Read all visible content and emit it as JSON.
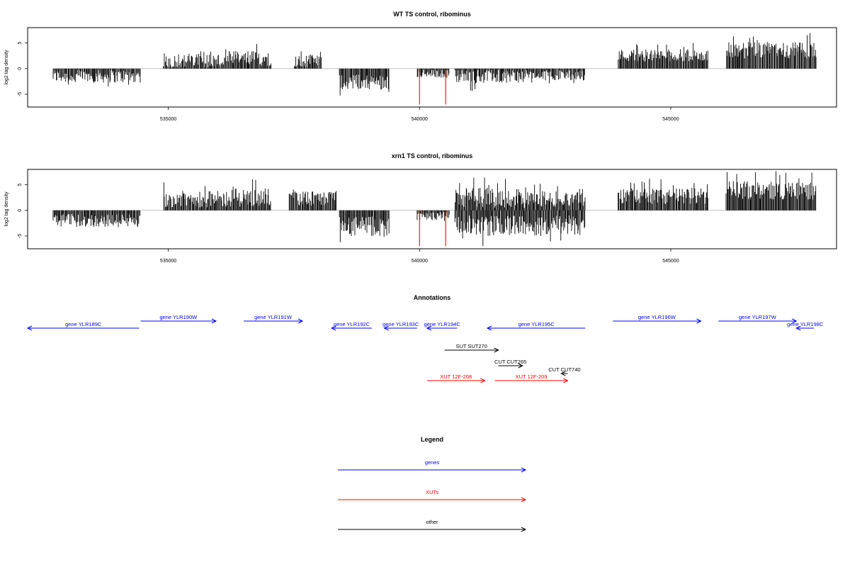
{
  "chart_data": [
    {
      "type": "bar",
      "title": "WT TS control, ribominus",
      "ylabel": "log2 tag density",
      "xlim": [
        532200,
        548300
      ],
      "ylim": [
        -7.5,
        8
      ],
      "x_ticks": [
        "535000",
        "540000",
        "545000"
      ],
      "y_ticks": [
        "-5",
        "0",
        "5"
      ],
      "signal_regions": [
        {
          "start": 532700,
          "end": 534450,
          "base": -1.5,
          "amp": 1.3
        },
        {
          "start": 534900,
          "end": 536200,
          "base": 1.5,
          "amp": 1.5
        },
        {
          "start": 536200,
          "end": 537050,
          "base": 2.0,
          "amp": 1.5
        },
        {
          "start": 537500,
          "end": 538050,
          "base": 1.5,
          "amp": 1.2
        },
        {
          "start": 538400,
          "end": 539400,
          "base": -2.6,
          "amp": 1.5
        },
        {
          "start": 539950,
          "end": 540600,
          "base": -1.0,
          "amp": 0.8
        },
        {
          "start": 540700,
          "end": 542100,
          "base": -1.5,
          "amp": 1.4
        },
        {
          "start": 542100,
          "end": 543300,
          "base": -1.3,
          "amp": 1.0
        },
        {
          "start": 543950,
          "end": 545750,
          "base": 2.6,
          "amp": 1.2
        },
        {
          "start": 546100,
          "end": 547900,
          "base": 3.6,
          "amp": 1.6
        }
      ],
      "highlight_x": [
        540000,
        540520
      ],
      "highlight_y": -7
    },
    {
      "type": "bar",
      "title": "xrn1 TS control, ribominus",
      "ylabel": "log2 tag density",
      "xlim": [
        532200,
        548300
      ],
      "ylim": [
        -7.5,
        8
      ],
      "x_ticks": [
        "535000",
        "540000",
        "545000"
      ],
      "y_ticks": [
        "-5",
        "0",
        "5"
      ],
      "signal_regions": [
        {
          "start": 532700,
          "end": 534450,
          "base": -2.0,
          "amp": 1.3
        },
        {
          "start": 534900,
          "end": 536200,
          "base": 2.2,
          "amp": 1.6
        },
        {
          "start": 536200,
          "end": 537050,
          "base": 2.5,
          "amp": 1.8
        },
        {
          "start": 537400,
          "end": 538350,
          "base": 2.3,
          "amp": 1.5
        },
        {
          "start": 538400,
          "end": 539400,
          "base": -3.2,
          "amp": 2.0
        },
        {
          "start": 539950,
          "end": 540600,
          "base": -1.0,
          "amp": 1.0
        },
        {
          "start": 540700,
          "end": 542100,
          "base": 2.5,
          "amp": 2.0
        },
        {
          "start": 540700,
          "end": 542100,
          "base": -3.0,
          "amp": 2.0
        },
        {
          "start": 542100,
          "end": 543300,
          "base": 2.2,
          "amp": 1.5
        },
        {
          "start": 542100,
          "end": 543300,
          "base": -3.0,
          "amp": 2.0
        },
        {
          "start": 543950,
          "end": 545750,
          "base": 2.8,
          "amp": 1.6
        },
        {
          "start": 546100,
          "end": 547900,
          "base": 3.9,
          "amp": 1.8
        }
      ],
      "highlight_x": [
        540000,
        540520
      ],
      "highlight_y": -7
    }
  ],
  "annotations": {
    "title": "Annotations",
    "genes": [
      {
        "label": "gene YLR189C",
        "start": 532200,
        "end": 534420,
        "strand": "-",
        "row": 1
      },
      {
        "label": "gene YLR190W",
        "start": 534450,
        "end": 535950,
        "strand": "+",
        "row": 0
      },
      {
        "label": "gene YLR191W",
        "start": 536500,
        "end": 537670,
        "strand": "+",
        "row": 0
      },
      {
        "label": "gene YLR192C",
        "start": 538250,
        "end": 539050,
        "strand": "-",
        "row": 1
      },
      {
        "label": "gene YLR193C",
        "start": 539300,
        "end": 539950,
        "strand": "-",
        "row": 1
      },
      {
        "label": "gene YLR194C",
        "start": 540150,
        "end": 540750,
        "strand": "-",
        "row": 1
      },
      {
        "label": "gene YLR195C",
        "start": 541350,
        "end": 543300,
        "strand": "-",
        "row": 1
      },
      {
        "label": "gene YLR196W",
        "start": 543850,
        "end": 545600,
        "strand": "+",
        "row": 0
      },
      {
        "label": "gene YLR197W",
        "start": 545950,
        "end": 547500,
        "strand": "+",
        "row": 0
      },
      {
        "label": "gene YLR198C",
        "start": 547500,
        "end": 547850,
        "strand": "-",
        "row": 1
      }
    ],
    "others": [
      {
        "label": "SUT SUT270",
        "start": 540500,
        "end": 541570,
        "strand": "+",
        "row": 2
      },
      {
        "label": "CUT CUT265",
        "start": 541570,
        "end": 542050,
        "strand": "+",
        "row": 3
      },
      {
        "label": "CUT CUT740",
        "start": 542820,
        "end": 542950,
        "strand": "-",
        "row": 4
      }
    ],
    "xuts": [
      {
        "label": "XUT 12F-208",
        "start": 540150,
        "end": 541300,
        "strand": "+",
        "row": 5
      },
      {
        "label": "XUT 12F-209",
        "start": 541500,
        "end": 542950,
        "strand": "+",
        "row": 5
      }
    ]
  },
  "legend": {
    "title": "Legend",
    "items": [
      {
        "label": "genes",
        "color": "#0000ff"
      },
      {
        "label": "XUTs",
        "color": "#ff0000"
      },
      {
        "label": "other",
        "color": "#000000"
      }
    ]
  },
  "colors": {
    "signal": "#000000",
    "highlight": "#ff0000",
    "gene": "#0000ff",
    "xut": "#ff0000",
    "other": "#000000",
    "baseline": "#999999"
  }
}
